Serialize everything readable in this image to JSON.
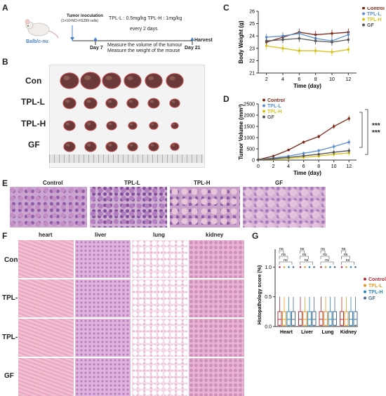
{
  "panel_labels": {
    "a": "A",
    "b": "B",
    "c": "C",
    "d": "D",
    "e": "E",
    "f": "F",
    "g": "G"
  },
  "panel_a": {
    "mouse_label": "Balb/c-nu",
    "inoculation": "Tumor inoculation",
    "cells": "(1×10⁶NCI-H1299 cells)",
    "dose_line": "TPL-L : 0.5mg/kg  TPL-H : 1mg/kg",
    "schedule": "every 2 days",
    "harvest": "Harvest",
    "day7": "Day 7",
    "day21": "Day 21",
    "measure1": "Measure the volume of the tumour",
    "measure2": "Measure the weight of the mouse"
  },
  "panel_b": {
    "rows": [
      "Con",
      "TPL-L",
      "TPL-H",
      "GF"
    ]
  },
  "panel_c": {
    "chart_data": {
      "type": "line",
      "ylabel": "Body Weight (g)",
      "xlabel": "Time (day)",
      "x": [
        2,
        4,
        6,
        8,
        10,
        12
      ],
      "ylim": [
        21,
        26
      ],
      "yticks": [
        21,
        22,
        23,
        24,
        25,
        26
      ],
      "series": [
        {
          "name": "Control",
          "color": "#7b2a1a",
          "values": [
            23.5,
            23.9,
            24.3,
            24.1,
            24.2,
            24.3
          ]
        },
        {
          "name": "TPL-L",
          "color": "#5b8fd0",
          "values": [
            23.9,
            24.0,
            24.2,
            23.8,
            23.6,
            24.1
          ]
        },
        {
          "name": "TPL-H",
          "color": "#d8c21a",
          "values": [
            23.2,
            23.0,
            22.8,
            22.8,
            22.7,
            22.9
          ]
        },
        {
          "name": "GF",
          "color": "#555555",
          "values": [
            23.6,
            23.7,
            23.8,
            23.6,
            23.5,
            23.7
          ]
        }
      ]
    }
  },
  "panel_d": {
    "sig1": "***",
    "sig2": "***",
    "chart_data": {
      "type": "line",
      "ylabel": "Tumor Volume (mm³)",
      "xlabel": "Time (day)",
      "x": [
        0,
        2,
        4,
        6,
        8,
        10,
        12
      ],
      "ylim": [
        0,
        2500
      ],
      "yticks": [
        0,
        500,
        1000,
        1500,
        2000,
        2500
      ],
      "series": [
        {
          "name": "Control",
          "color": "#7b2a1a",
          "values": [
            20,
            180,
            450,
            800,
            1050,
            1500,
            1850
          ]
        },
        {
          "name": "TPL-L",
          "color": "#5b8fd0",
          "values": [
            20,
            90,
            180,
            300,
            420,
            600,
            800
          ]
        },
        {
          "name": "TPL-H",
          "color": "#d8c21a",
          "values": [
            20,
            40,
            80,
            120,
            180,
            260,
            320
          ]
        },
        {
          "name": "GF",
          "color": "#555555",
          "values": [
            20,
            60,
            120,
            190,
            260,
            350,
            420
          ]
        }
      ]
    }
  },
  "panel_e": {
    "titles": [
      "Control",
      "TPL-L",
      "TPL-H",
      "GF"
    ]
  },
  "panel_f": {
    "cols": [
      "heart",
      "liver",
      "lung",
      "kidney"
    ],
    "rows": [
      "Con",
      "TPL-L",
      "TPL-H",
      "GF"
    ]
  },
  "panel_g": {
    "ns": "ns",
    "chart_data": {
      "type": "box",
      "ylabel": "Histopathology score (%)",
      "categories": [
        "Heart",
        "Liver",
        "Lung",
        "Kidney"
      ],
      "ylim": [
        0,
        1.0
      ],
      "yticks": [
        0.0,
        0.5,
        1.0
      ],
      "series": [
        {
          "name": "Control",
          "color": "#b0303a"
        },
        {
          "name": "TPL-L",
          "color": "#e39a2c"
        },
        {
          "name": "TPL-H",
          "color": "#2a86b8"
        },
        {
          "name": "GF",
          "color": "#4a6b8a"
        }
      ]
    }
  }
}
